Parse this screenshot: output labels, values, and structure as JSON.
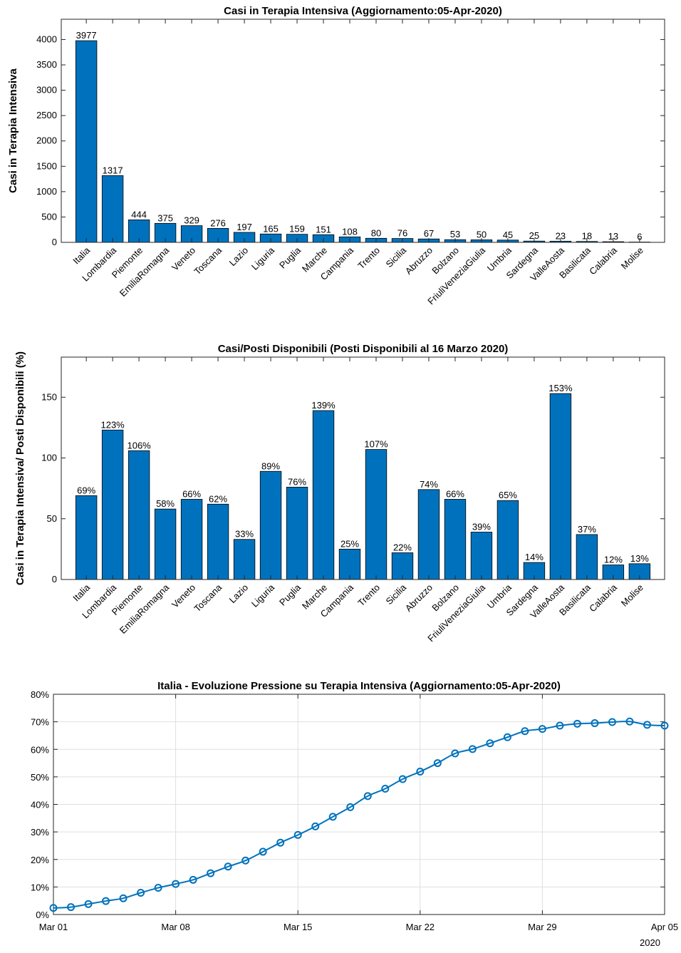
{
  "chart_data": [
    {
      "type": "bar",
      "title": "Casi in Terapia Intensiva (Aggiornamento:05-Apr-2020)",
      "ylabel": "Casi in Terapia Intensiva",
      "xlabel": "",
      "categories": [
        "Italia",
        "Lombardia",
        "Piemonte",
        "EmiliaRomagna",
        "Veneto",
        "Toscana",
        "Lazio",
        "Liguria",
        "Puglia",
        "Marche",
        "Campania",
        "Trento",
        "Sicilia",
        "Abruzzo",
        "Bolzano",
        "FriuliVeneziaGiulia",
        "Umbria",
        "Sardegna",
        "ValleAosta",
        "Basilicata",
        "Calabria",
        "Molise"
      ],
      "values": [
        3977,
        1317,
        444,
        375,
        329,
        276,
        197,
        165,
        159,
        151,
        108,
        80,
        76,
        67,
        53,
        50,
        45,
        25,
        23,
        18,
        13,
        6
      ],
      "value_labels": [
        "3977",
        "1317",
        "444",
        "375",
        "329",
        "276",
        "197",
        "165",
        "159",
        "151",
        "108",
        "80",
        "76",
        "67",
        "53",
        "50",
        "45",
        "25",
        "23",
        "18",
        "13",
        "6"
      ],
      "ylim": [
        0,
        4400
      ],
      "yticks": [
        0,
        500,
        1000,
        1500,
        2000,
        2500,
        3000,
        3500,
        4000
      ],
      "ytick_labels": [
        "0",
        "500",
        "1000",
        "1500",
        "2000",
        "2500",
        "3000",
        "3500",
        "4000"
      ],
      "grid": false,
      "bar_color": "#0072BD"
    },
    {
      "type": "bar",
      "title": "Casi/Posti Disponibili (Posti Disponibili al 16 Marzo 2020)",
      "ylabel": "Casi in Terapia Intensiva/ Posti Disponibili (%)",
      "xlabel": "",
      "categories": [
        "Italia",
        "Lombardia",
        "Piemonte",
        "EmiliaRomagna",
        "Veneto",
        "Toscana",
        "Lazio",
        "Liguria",
        "Puglia",
        "Marche",
        "Campania",
        "Trento",
        "Sicilia",
        "Abruzzo",
        "Bolzano",
        "FriuliVeneziaGiulia",
        "Umbria",
        "Sardegna",
        "ValleAosta",
        "Basilicata",
        "Calabria",
        "Molise"
      ],
      "values": [
        69,
        123,
        106,
        58,
        66,
        62,
        33,
        89,
        76,
        139,
        25,
        107,
        22,
        74,
        66,
        39,
        65,
        14,
        153,
        37,
        12,
        13
      ],
      "value_labels": [
        "69%",
        "123%",
        "106%",
        "58%",
        "66%",
        "62%",
        "33%",
        "89%",
        "76%",
        "139%",
        "25%",
        "107%",
        "22%",
        "74%",
        "66%",
        "39%",
        "65%",
        "14%",
        "153%",
        "37%",
        "12%",
        "13%"
      ],
      "ylim": [
        0,
        183
      ],
      "yticks": [
        0,
        50,
        100,
        150
      ],
      "ytick_labels": [
        "0",
        "50",
        "100",
        "150"
      ],
      "grid": false,
      "bar_color": "#0072BD"
    },
    {
      "type": "line",
      "title": "Italia - Evoluzione Pressione su Terapia Intensiva  (Aggiornamento:05-Apr-2020)",
      "xlabel": "",
      "ylabel": "",
      "x": [
        "2020-03-01",
        "2020-03-02",
        "2020-03-03",
        "2020-03-04",
        "2020-03-05",
        "2020-03-06",
        "2020-03-07",
        "2020-03-08",
        "2020-03-09",
        "2020-03-10",
        "2020-03-11",
        "2020-03-12",
        "2020-03-13",
        "2020-03-14",
        "2020-03-15",
        "2020-03-16",
        "2020-03-17",
        "2020-03-18",
        "2020-03-19",
        "2020-03-20",
        "2020-03-21",
        "2020-03-22",
        "2020-03-23",
        "2020-03-24",
        "2020-03-25",
        "2020-03-26",
        "2020-03-27",
        "2020-03-28",
        "2020-03-29",
        "2020-03-30",
        "2020-03-31",
        "2020-04-01",
        "2020-04-02",
        "2020-04-03",
        "2020-04-04",
        "2020-04-05"
      ],
      "series": [
        {
          "values": [
            2.4,
            2.7,
            3.8,
            4.9,
            5.9,
            7.9,
            9.7,
            11.1,
            12.6,
            15.0,
            17.4,
            19.6,
            22.8,
            26.1,
            28.9,
            32.0,
            35.5,
            39.0,
            43.0,
            45.7,
            49.2,
            51.9,
            55.0,
            58.5,
            60.1,
            62.2,
            64.4,
            66.6,
            67.4,
            68.6,
            69.3,
            69.5,
            69.9,
            70.1,
            68.9,
            68.6
          ],
          "color": "#0072BD",
          "marker": "circle"
        }
      ],
      "xtick_labels": [
        "Mar 01",
        "Mar 08",
        "Mar 15",
        "Mar 22",
        "Mar 29",
        "Apr 05"
      ],
      "xtick_dates": [
        "2020-03-01",
        "2020-03-08",
        "2020-03-15",
        "2020-03-22",
        "2020-03-29",
        "2020-04-05"
      ],
      "x_year_label": "2020",
      "ylim": [
        0,
        80
      ],
      "yticks": [
        0,
        10,
        20,
        30,
        40,
        50,
        60,
        70,
        80
      ],
      "ytick_labels": [
        "0%",
        "10%",
        "20%",
        "30%",
        "40%",
        "50%",
        "60%",
        "70%",
        "80%"
      ],
      "grid": true
    }
  ]
}
